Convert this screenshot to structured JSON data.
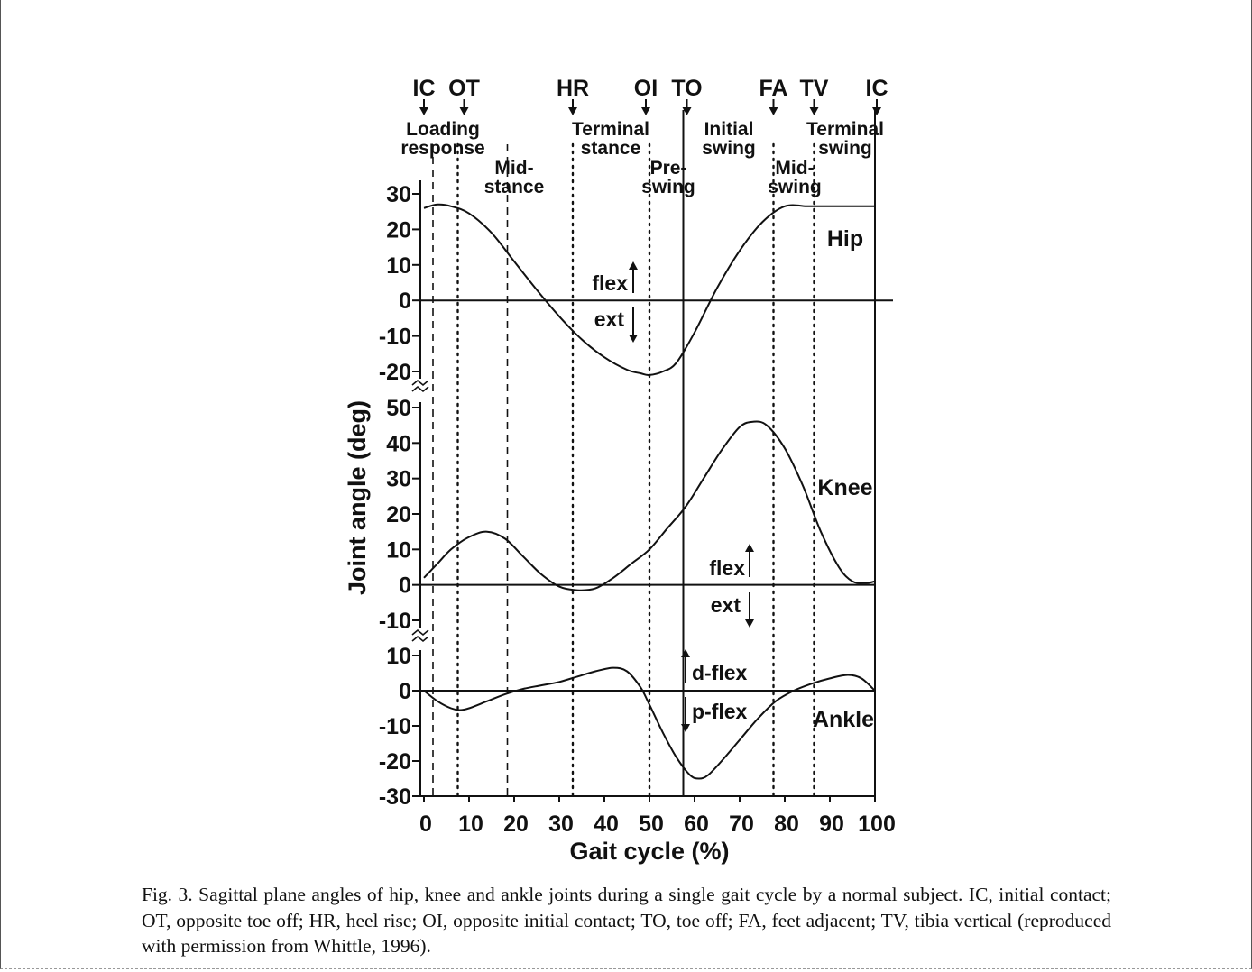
{
  "chart_data": {
    "type": "line",
    "xlabel": "Gait cycle (%)",
    "ylabel": "Joint angle (deg)",
    "xlim": [
      0,
      100
    ],
    "x_ticks": [
      0,
      10,
      20,
      30,
      40,
      50,
      60,
      70,
      80,
      90,
      100
    ],
    "x_tick_labels": [
      "0",
      "10",
      "20",
      "30",
      "40",
      "50",
      "60",
      "70",
      "80",
      "90",
      "100"
    ],
    "grid": false,
    "panels": [
      {
        "name": "Hip",
        "ylim": [
          -20,
          30
        ],
        "y_ticks": [
          30,
          20,
          10,
          0,
          -10,
          -20
        ],
        "y_tick_labels": [
          "30",
          "20",
          "10",
          "0",
          "-10",
          "-20"
        ],
        "series": [
          {
            "name": "Hip",
            "x": [
              0,
              3,
              6,
              10,
              15,
              20,
              25,
              30,
              35,
              40,
              45,
              48,
              50,
              53,
              56,
              60,
              65,
              70,
              75,
              80,
              85,
              88,
              90,
              95,
              100
            ],
            "y": [
              26,
              27,
              26.5,
              24.5,
              19,
              11,
              3,
              -4.5,
              -11,
              -16,
              -19.5,
              -20.5,
              -21,
              -20,
              -17.5,
              -9,
              3.5,
              14,
              22,
              26.5,
              26.5,
              26.5,
              26.5,
              26.5,
              26.5
            ]
          }
        ],
        "annotations": [
          {
            "text": "flex",
            "arrow": "up"
          },
          {
            "text": "ext",
            "arrow": "down"
          }
        ]
      },
      {
        "name": "Knee",
        "ylim": [
          -10,
          50
        ],
        "y_ticks": [
          50,
          40,
          30,
          20,
          10,
          0,
          -10
        ],
        "y_tick_labels": [
          "50",
          "40",
          "30",
          "20",
          "10",
          "0",
          "-10"
        ],
        "series": [
          {
            "name": "Knee",
            "x": [
              0,
              3,
              6,
              10,
              14,
              18,
              22,
              26,
              30,
              34,
              38,
              42,
              46,
              50,
              54,
              58,
              62,
              66,
              70,
              73,
              76,
              80,
              84,
              88,
              92,
              95,
              98,
              100
            ],
            "y": [
              2,
              6,
              10,
              13.5,
              15,
              13,
              8,
              3,
              -0.5,
              -1.5,
              -1,
              2,
              6,
              10,
              16,
              22,
              30,
              38,
              44.5,
              46,
              45,
              38.5,
              28,
              15,
              5,
              1,
              0.5,
              1
            ]
          }
        ],
        "annotations": [
          {
            "text": "flex",
            "arrow": "up"
          },
          {
            "text": "ext",
            "arrow": "down"
          }
        ]
      },
      {
        "name": "Ankle",
        "ylim": [
          -30,
          10
        ],
        "y_ticks": [
          10,
          0,
          -10,
          -20,
          -30
        ],
        "y_tick_labels": [
          "10",
          "0",
          "-10",
          "-20",
          "-30"
        ],
        "series": [
          {
            "name": "Ankle",
            "x": [
              0,
              3,
              6,
              8,
              10,
              14,
              18,
              22,
              26,
              30,
              34,
              38,
              42,
              45,
              48,
              50,
              53,
              56,
              59,
              61,
              63,
              66,
              70,
              74,
              78,
              82,
              86,
              90,
              94,
              97,
              100
            ],
            "y": [
              0,
              -3,
              -5,
              -5.5,
              -5,
              -3,
              -1,
              0.5,
              1.5,
              2.5,
              4,
              5.5,
              6.5,
              5.5,
              1,
              -4,
              -12,
              -19,
              -24,
              -25,
              -24,
              -20,
              -14,
              -8,
              -3,
              0,
              2,
              3.5,
              4.5,
              3.5,
              0
            ]
          }
        ],
        "annotations": [
          {
            "text": "d-flex",
            "arrow": "up"
          },
          {
            "text": "p-flex",
            "arrow": "down"
          }
        ]
      }
    ],
    "events": [
      {
        "label": "IC",
        "x": 0
      },
      {
        "label": "OT",
        "x": 7.5
      },
      {
        "label": "HR",
        "x": 33
      },
      {
        "label": "OI",
        "x": 50
      },
      {
        "label": "TO",
        "x": 57.5
      },
      {
        "label": "FA",
        "x": 77.5
      },
      {
        "label": "TV",
        "x": 86.5
      },
      {
        "label": "IC",
        "x": 100
      }
    ],
    "phase_lines": [
      {
        "x": 2,
        "style": "dashed"
      },
      {
        "x": 7.5,
        "style": "dotted"
      },
      {
        "x": 18.5,
        "style": "dashed"
      },
      {
        "x": 33,
        "style": "dotted"
      },
      {
        "x": 50,
        "style": "dotted"
      },
      {
        "x": 57.5,
        "style": "solid"
      },
      {
        "x": 77.5,
        "style": "dotted"
      },
      {
        "x": 86.5,
        "style": "dotted"
      }
    ],
    "phases": [
      {
        "lines": [
          "Loading",
          "response"
        ]
      },
      {
        "lines": [
          "Mid-",
          "stance"
        ]
      },
      {
        "lines": [
          "Terminal",
          "stance"
        ]
      },
      {
        "lines": [
          "Pre-",
          "swing"
        ]
      },
      {
        "lines": [
          "Initial",
          "swing"
        ]
      },
      {
        "lines": [
          "Mid-",
          "swing"
        ]
      },
      {
        "lines": [
          "Terminal",
          "swing"
        ]
      }
    ]
  },
  "caption": "Fig. 3. Sagittal plane angles of hip, knee and ankle joints during a single gait cycle by a normal subject. IC, initial contact; OT, opposite toe off; HR, heel rise; OI, opposite initial contact; TO, toe off; FA, feet adjacent; TV, tibia vertical (reproduced with permission from Whittle, 1996)."
}
